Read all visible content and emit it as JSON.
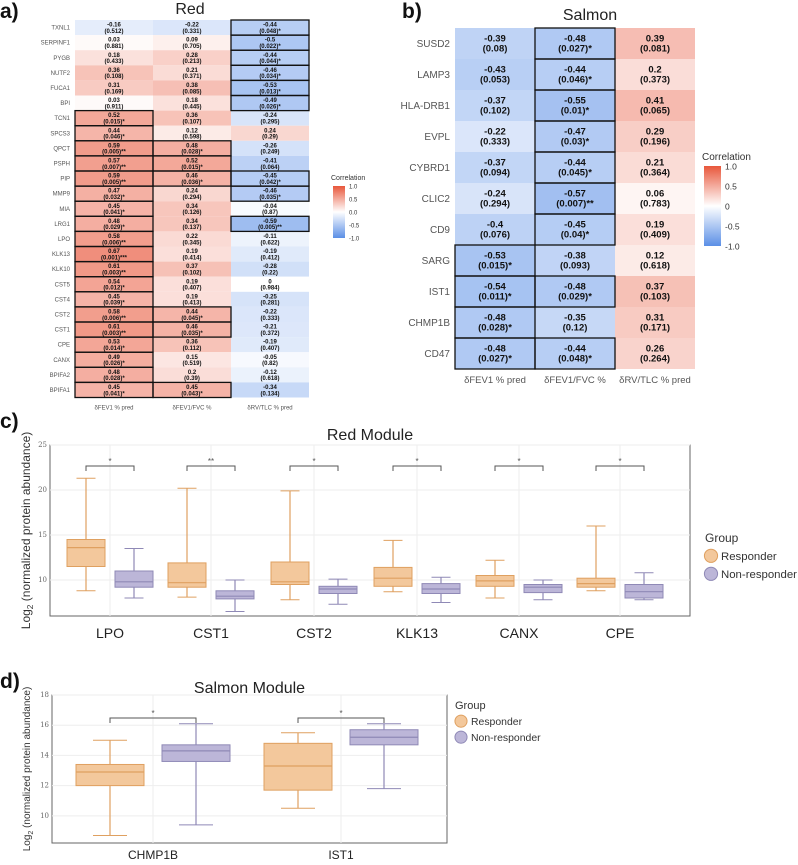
{
  "colors": {
    "neg": "#5b8fe6",
    "pos": "#e8573b",
    "responder_fill": "#f3c89c",
    "responder_stroke": "#dfa060",
    "nonresponder_fill": "#bcb6d8",
    "nonresponder_stroke": "#8f89b6"
  },
  "panel_a": {
    "label": "a)",
    "title": "Red",
    "columns": [
      "δFEV1 % pred",
      "δFEV1/FVC %",
      "δRV/TLC % pred"
    ],
    "legend": {
      "title": "Correlation",
      "ticks": [
        "1.0",
        "0.5",
        "0.0",
        "-0.5",
        "-1.0"
      ]
    },
    "rows": [
      {
        "gene": "TXNL1",
        "cells": [
          {
            "r": "-0.16",
            "p": "(0.512)"
          },
          {
            "r": "-0.22",
            "p": "(0.331)"
          },
          {
            "r": "-0.44",
            "p": "(0.048)*"
          }
        ]
      },
      {
        "gene": "SERPINF1",
        "cells": [
          {
            "r": "0.03",
            "p": "(0.881)"
          },
          {
            "r": "0.09",
            "p": "(0.705)"
          },
          {
            "r": "-0.5",
            "p": "(0.022)*"
          }
        ]
      },
      {
        "gene": "PYGB",
        "cells": [
          {
            "r": "0.18",
            "p": "(0.433)"
          },
          {
            "r": "0.28",
            "p": "(0.213)"
          },
          {
            "r": "-0.44",
            "p": "(0.044)*"
          }
        ]
      },
      {
        "gene": "NUTF2",
        "cells": [
          {
            "r": "0.36",
            "p": "(0.108)"
          },
          {
            "r": "0.21",
            "p": "(0.371)"
          },
          {
            "r": "-0.46",
            "p": "(0.034)*"
          }
        ]
      },
      {
        "gene": "FUCA1",
        "cells": [
          {
            "r": "0.31",
            "p": "(0.169)"
          },
          {
            "r": "0.38",
            "p": "(0.085)"
          },
          {
            "r": "-0.53",
            "p": "(0.013)*"
          }
        ]
      },
      {
        "gene": "BPI",
        "cells": [
          {
            "r": "0.03",
            "p": "(0.911)"
          },
          {
            "r": "0.18",
            "p": "(0.445)"
          },
          {
            "r": "-0.49",
            "p": "(0.026)*"
          }
        ]
      },
      {
        "gene": "TCN1",
        "cells": [
          {
            "r": "0.52",
            "p": "(0.015)*"
          },
          {
            "r": "0.36",
            "p": "(0.107)"
          },
          {
            "r": "-0.24",
            "p": "(0.295)"
          }
        ]
      },
      {
        "gene": "SPCS3",
        "cells": [
          {
            "r": "0.44",
            "p": "(0.046)*"
          },
          {
            "r": "0.12",
            "p": "(0.598)"
          },
          {
            "r": "0.24",
            "p": "(0.29)"
          }
        ]
      },
      {
        "gene": "QPCT",
        "cells": [
          {
            "r": "0.59",
            "p": "(0.005)**"
          },
          {
            "r": "0.48",
            "p": "(0.028)*"
          },
          {
            "r": "-0.26",
            "p": "(0.249)"
          }
        ]
      },
      {
        "gene": "PSPH",
        "cells": [
          {
            "r": "0.57",
            "p": "(0.007)**"
          },
          {
            "r": "0.52",
            "p": "(0.015)*"
          },
          {
            "r": "-0.41",
            "p": "(0.064)"
          }
        ]
      },
      {
        "gene": "PIP",
        "cells": [
          {
            "r": "0.59",
            "p": "(0.005)**"
          },
          {
            "r": "0.46",
            "p": "(0.036)*"
          },
          {
            "r": "-0.45",
            "p": "(0.042)*"
          }
        ]
      },
      {
        "gene": "MMP9",
        "cells": [
          {
            "r": "0.47",
            "p": "(0.032)*"
          },
          {
            "r": "0.24",
            "p": "(0.294)"
          },
          {
            "r": "-0.46",
            "p": "(0.035)*"
          }
        ]
      },
      {
        "gene": "MIA",
        "cells": [
          {
            "r": "0.45",
            "p": "(0.041)*"
          },
          {
            "r": "0.34",
            "p": "(0.126)"
          },
          {
            "r": "-0.04",
            "p": "(0.87)"
          }
        ]
      },
      {
        "gene": "LRG1",
        "cells": [
          {
            "r": "0.48",
            "p": "(0.029)*"
          },
          {
            "r": "0.34",
            "p": "(0.137)"
          },
          {
            "r": "-0.59",
            "p": "(0.005)**"
          }
        ]
      },
      {
        "gene": "LPO",
        "cells": [
          {
            "r": "0.58",
            "p": "(0.006)**"
          },
          {
            "r": "0.22",
            "p": "(0.345)"
          },
          {
            "r": "-0.11",
            "p": "(0.622)"
          }
        ]
      },
      {
        "gene": "KLK13",
        "cells": [
          {
            "r": "0.67",
            "p": "(0.001)***"
          },
          {
            "r": "0.19",
            "p": "(0.414)"
          },
          {
            "r": "-0.19",
            "p": "(0.412)"
          }
        ]
      },
      {
        "gene": "KLK10",
        "cells": [
          {
            "r": "0.61",
            "p": "(0.003)**"
          },
          {
            "r": "0.37",
            "p": "(0.102)"
          },
          {
            "r": "-0.28",
            "p": "(0.22)"
          }
        ]
      },
      {
        "gene": "CST5",
        "cells": [
          {
            "r": "0.54",
            "p": "(0.012)*"
          },
          {
            "r": "0.19",
            "p": "(0.407)"
          },
          {
            "r": "0",
            "p": "(0.984)"
          }
        ]
      },
      {
        "gene": "CST4",
        "cells": [
          {
            "r": "0.45",
            "p": "(0.039)*"
          },
          {
            "r": "0.19",
            "p": "(0.413)"
          },
          {
            "r": "-0.25",
            "p": "(0.281)"
          }
        ]
      },
      {
        "gene": "CST2",
        "cells": [
          {
            "r": "0.58",
            "p": "(0.006)**"
          },
          {
            "r": "0.44",
            "p": "(0.045)*"
          },
          {
            "r": "-0.22",
            "p": "(0.333)"
          }
        ]
      },
      {
        "gene": "CST1",
        "cells": [
          {
            "r": "0.61",
            "p": "(0.003)**"
          },
          {
            "r": "0.46",
            "p": "(0.035)*"
          },
          {
            "r": "-0.21",
            "p": "(0.372)"
          }
        ]
      },
      {
        "gene": "CPE",
        "cells": [
          {
            "r": "0.53",
            "p": "(0.014)*"
          },
          {
            "r": "0.36",
            "p": "(0.112)"
          },
          {
            "r": "-0.19",
            "p": "(0.407)"
          }
        ]
      },
      {
        "gene": "CANX",
        "cells": [
          {
            "r": "0.49",
            "p": "(0.026)*"
          },
          {
            "r": "0.15",
            "p": "(0.519)"
          },
          {
            "r": "-0.05",
            "p": "(0.82)"
          }
        ]
      },
      {
        "gene": "BPIFA2",
        "cells": [
          {
            "r": "0.48",
            "p": "(0.028)*"
          },
          {
            "r": "0.2",
            "p": "(0.39)"
          },
          {
            "r": "-0.12",
            "p": "(0.618)"
          }
        ]
      },
      {
        "gene": "BPIFA1",
        "cells": [
          {
            "r": "0.45",
            "p": "(0.041)*"
          },
          {
            "r": "0.45",
            "p": "(0.043)*"
          },
          {
            "r": "-0.34",
            "p": "(0.134)"
          }
        ]
      }
    ]
  },
  "panel_b": {
    "label": "b)",
    "title": "Salmon",
    "columns": [
      "δFEV1 % pred",
      "δFEV1/FVC %",
      "δRV/TLC % pred"
    ],
    "legend": {
      "title": "Correlation",
      "ticks": [
        "1.0",
        "0.5",
        "0",
        "-0.5",
        "-1.0"
      ]
    },
    "rows": [
      {
        "gene": "SUSD2",
        "cells": [
          {
            "r": "-0.39",
            "p": "(0.08)"
          },
          {
            "r": "-0.48",
            "p": "(0.027)*"
          },
          {
            "r": "0.39",
            "p": "(0.081)"
          }
        ]
      },
      {
        "gene": "LAMP3",
        "cells": [
          {
            "r": "-0.43",
            "p": "(0.053)"
          },
          {
            "r": "-0.44",
            "p": "(0.046)*"
          },
          {
            "r": "0.2",
            "p": "(0.373)"
          }
        ]
      },
      {
        "gene": "HLA-DRB1",
        "cells": [
          {
            "r": "-0.37",
            "p": "(0.102)"
          },
          {
            "r": "-0.55",
            "p": "(0.01)*"
          },
          {
            "r": "0.41",
            "p": "(0.065)"
          }
        ]
      },
      {
        "gene": "EVPL",
        "cells": [
          {
            "r": "-0.22",
            "p": "(0.333)"
          },
          {
            "r": "-0.47",
            "p": "(0.03)*"
          },
          {
            "r": "0.29",
            "p": "(0.196)"
          }
        ]
      },
      {
        "gene": "CYBRD1",
        "cells": [
          {
            "r": "-0.37",
            "p": "(0.094)"
          },
          {
            "r": "-0.44",
            "p": "(0.045)*"
          },
          {
            "r": "0.21",
            "p": "(0.364)"
          }
        ]
      },
      {
        "gene": "CLIC2",
        "cells": [
          {
            "r": "-0.24",
            "p": "(0.294)"
          },
          {
            "r": "-0.57",
            "p": "(0.007)**"
          },
          {
            "r": "0.06",
            "p": "(0.783)"
          }
        ]
      },
      {
        "gene": "CD9",
        "cells": [
          {
            "r": "-0.4",
            "p": "(0.076)"
          },
          {
            "r": "-0.45",
            "p": "(0.04)*"
          },
          {
            "r": "0.19",
            "p": "(0.409)"
          }
        ]
      },
      {
        "gene": "SARG",
        "cells": [
          {
            "r": "-0.53",
            "p": "(0.015)*"
          },
          {
            "r": "-0.38",
            "p": "(0.093)"
          },
          {
            "r": "0.12",
            "p": "(0.618)"
          }
        ]
      },
      {
        "gene": "IST1",
        "cells": [
          {
            "r": "-0.54",
            "p": "(0.011)*"
          },
          {
            "r": "-0.48",
            "p": "(0.029)*"
          },
          {
            "r": "0.37",
            "p": "(0.103)"
          }
        ]
      },
      {
        "gene": "CHMP1B",
        "cells": [
          {
            "r": "-0.48",
            "p": "(0.028)*"
          },
          {
            "r": "-0.35",
            "p": "(0.12)"
          },
          {
            "r": "0.31",
            "p": "(0.171)"
          }
        ]
      },
      {
        "gene": "CD47",
        "cells": [
          {
            "r": "-0.48",
            "p": "(0.027)*"
          },
          {
            "r": "-0.44",
            "p": "(0.048)*"
          },
          {
            "r": "0.26",
            "p": "(0.264)"
          }
        ]
      }
    ]
  },
  "chart_data": [
    {
      "type": "box",
      "label": "c)",
      "title": "Red Module",
      "ylabel": "Log2 (normalized protein abundance)",
      "ylabel_sub": "2",
      "ylim": [
        6,
        25
      ],
      "yticks": [
        "10",
        "15",
        "20",
        "25"
      ],
      "legend": {
        "title": "Group",
        "entries": [
          "Responder",
          "Non-responder"
        ],
        "placement": "right"
      },
      "categories": [
        "LPO",
        "CST1",
        "CST2",
        "KLK13",
        "CANX",
        "CPE"
      ],
      "significance": [
        "*",
        "**",
        "*",
        "*",
        "*",
        "*"
      ],
      "series": [
        {
          "name": "Responder",
          "boxes": [
            [
              8.8,
              11.5,
              13.6,
              14.5,
              21.3
            ],
            [
              8.1,
              9.2,
              9.7,
              11.9,
              20.2
            ],
            [
              7.8,
              9.5,
              9.8,
              12.0,
              19.9
            ],
            [
              8.7,
              9.3,
              10.2,
              11.4,
              14.4
            ],
            [
              8.0,
              9.3,
              9.9,
              10.5,
              12.2
            ],
            [
              8.8,
              9.2,
              9.6,
              10.2,
              16.0
            ]
          ]
        },
        {
          "name": "Non-responder",
          "boxes": [
            [
              8.0,
              9.2,
              9.8,
              11.0,
              13.5
            ],
            [
              6.5,
              7.9,
              8.2,
              8.8,
              10.0
            ],
            [
              7.3,
              8.5,
              9.0,
              9.3,
              10.1
            ],
            [
              7.5,
              8.5,
              9.0,
              9.6,
              10.3
            ],
            [
              7.8,
              8.6,
              9.2,
              9.5,
              10.0
            ],
            [
              7.8,
              8.0,
              8.7,
              9.5,
              10.8
            ]
          ]
        }
      ]
    },
    {
      "type": "box",
      "label": "d)",
      "title": "Salmon Module",
      "ylabel": "Log2 (normalized protein abundance)",
      "ylabel_sub": "2",
      "ylim": [
        8.2,
        18
      ],
      "yticks": [
        "10",
        "12",
        "14",
        "16",
        "18"
      ],
      "legend": {
        "title": "Group",
        "entries": [
          "Responder",
          "Non-responder"
        ],
        "placement": "right"
      },
      "categories": [
        "CHMP1B",
        "IST1"
      ],
      "significance": [
        "*",
        "*"
      ],
      "series": [
        {
          "name": "Responder",
          "boxes": [
            [
              8.7,
              12.0,
              12.9,
              13.4,
              15.0
            ],
            [
              10.5,
              11.7,
              13.3,
              14.8,
              15.5
            ]
          ]
        },
        {
          "name": "Non-responder",
          "boxes": [
            [
              9.4,
              13.6,
              14.3,
              14.7,
              16.1
            ],
            [
              11.8,
              14.7,
              15.2,
              15.7,
              16.1
            ]
          ]
        }
      ]
    }
  ]
}
